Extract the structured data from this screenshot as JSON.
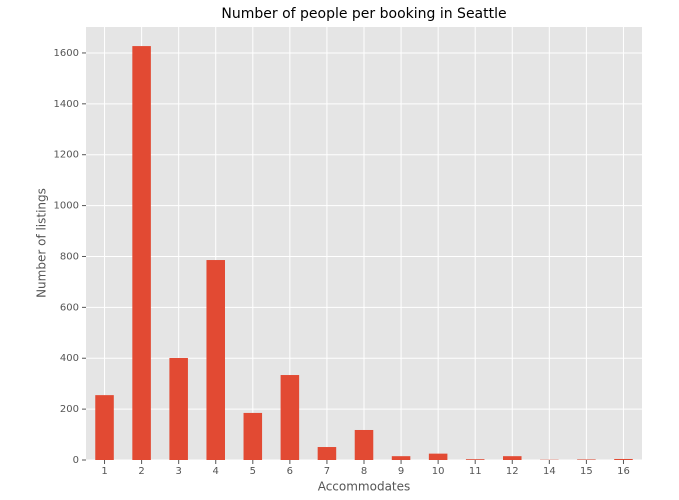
{
  "chart_data": {
    "type": "bar",
    "title": "Number of people per booking in Seattle",
    "xlabel": "Accommodates",
    "ylabel": "Number of listings",
    "categories": [
      "1",
      "2",
      "3",
      "4",
      "5",
      "6",
      "7",
      "8",
      "9",
      "10",
      "11",
      "12",
      "14",
      "15",
      "16"
    ],
    "values": [
      255,
      1627,
      401,
      786,
      185,
      334,
      51,
      118,
      15,
      25,
      3,
      15,
      1,
      2,
      4
    ],
    "color": "#e24a33",
    "ylim": [
      0,
      1702
    ],
    "yticks": [
      0,
      200,
      400,
      600,
      800,
      1000,
      1200,
      1400,
      1600
    ],
    "grid": true
  }
}
